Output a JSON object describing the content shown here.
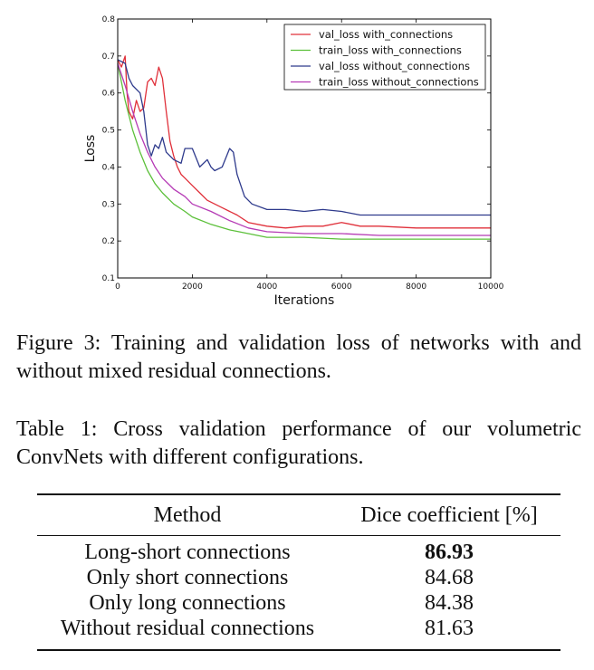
{
  "figure": {
    "caption": "Figure 3: Training and validation loss of networks with and without mixed residual connections.",
    "colors": {
      "val_with": "#e0303a",
      "train_with": "#5cc03a",
      "val_without": "#2e3a8c",
      "train_without": "#b53ab5"
    }
  },
  "chart_data": {
    "type": "line",
    "xlabel": "Iterations",
    "ylabel": "Loss",
    "xlim": [
      0,
      10000
    ],
    "ylim": [
      0.1,
      0.8
    ],
    "xticks": [
      0,
      2000,
      4000,
      6000,
      8000,
      10000
    ],
    "yticks": [
      0.1,
      0.2,
      0.3,
      0.4,
      0.5,
      0.6,
      0.7,
      0.8
    ],
    "grid": false,
    "legend_position": "top-right",
    "series": [
      {
        "name": "val_loss with_connections",
        "x": [
          0,
          100,
          200,
          250,
          300,
          400,
          500,
          600,
          700,
          800,
          900,
          1000,
          1100,
          1200,
          1300,
          1400,
          1500,
          1600,
          1700,
          1800,
          1900,
          2000,
          2200,
          2400,
          2600,
          2800,
          3000,
          3200,
          3500,
          4000,
          4500,
          5000,
          5500,
          6000,
          6500,
          7000,
          8000,
          9000,
          10000
        ],
        "y": [
          0.69,
          0.67,
          0.7,
          0.6,
          0.55,
          0.53,
          0.58,
          0.55,
          0.56,
          0.63,
          0.64,
          0.62,
          0.67,
          0.64,
          0.55,
          0.47,
          0.43,
          0.4,
          0.38,
          0.37,
          0.36,
          0.35,
          0.33,
          0.31,
          0.3,
          0.29,
          0.28,
          0.27,
          0.25,
          0.24,
          0.235,
          0.24,
          0.24,
          0.25,
          0.24,
          0.24,
          0.235,
          0.235,
          0.235
        ]
      },
      {
        "name": "train_loss with_connections",
        "x": [
          0,
          200,
          400,
          600,
          800,
          1000,
          1200,
          1500,
          1800,
          2000,
          2500,
          3000,
          3500,
          4000,
          5000,
          6000,
          7000,
          8000,
          9000,
          10000
        ],
        "y": [
          0.68,
          0.58,
          0.5,
          0.44,
          0.39,
          0.355,
          0.33,
          0.3,
          0.28,
          0.265,
          0.245,
          0.23,
          0.22,
          0.21,
          0.21,
          0.205,
          0.205,
          0.205,
          0.205,
          0.205
        ]
      },
      {
        "name": "val_loss without_connections",
        "x": [
          0,
          200,
          300,
          400,
          600,
          700,
          800,
          900,
          1000,
          1100,
          1200,
          1300,
          1500,
          1700,
          1800,
          2000,
          2200,
          2400,
          2500,
          2600,
          2800,
          3000,
          3100,
          3200,
          3400,
          3600,
          4000,
          4500,
          5000,
          5500,
          6000,
          6500,
          7000,
          8000,
          9000,
          10000
        ],
        "y": [
          0.69,
          0.68,
          0.64,
          0.62,
          0.6,
          0.55,
          0.46,
          0.43,
          0.46,
          0.45,
          0.48,
          0.44,
          0.42,
          0.41,
          0.45,
          0.45,
          0.4,
          0.42,
          0.4,
          0.39,
          0.4,
          0.45,
          0.44,
          0.38,
          0.32,
          0.3,
          0.285,
          0.285,
          0.28,
          0.285,
          0.28,
          0.27,
          0.27,
          0.27,
          0.27,
          0.27
        ]
      },
      {
        "name": "train_loss without_connections",
        "x": [
          0,
          200,
          400,
          600,
          800,
          1000,
          1200,
          1500,
          1800,
          2000,
          2500,
          3000,
          3500,
          4000,
          5000,
          6000,
          7000,
          8000,
          9000,
          10000
        ],
        "y": [
          0.68,
          0.62,
          0.55,
          0.49,
          0.44,
          0.4,
          0.37,
          0.34,
          0.32,
          0.3,
          0.28,
          0.255,
          0.235,
          0.225,
          0.22,
          0.22,
          0.215,
          0.215,
          0.215,
          0.215
        ]
      }
    ]
  },
  "table": {
    "caption": "Table 1: Cross validation performance of our volumetric ConvNets with different configurations.",
    "headers": [
      "Method",
      "Dice coefficient [%]"
    ],
    "rows": [
      {
        "method": "Long-short connections",
        "dice": "86.93"
      },
      {
        "method": "Only short connections",
        "dice": "84.68"
      },
      {
        "method": "Only long connections",
        "dice": "84.38"
      },
      {
        "method": "Without residual connections",
        "dice": "81.63"
      }
    ]
  }
}
